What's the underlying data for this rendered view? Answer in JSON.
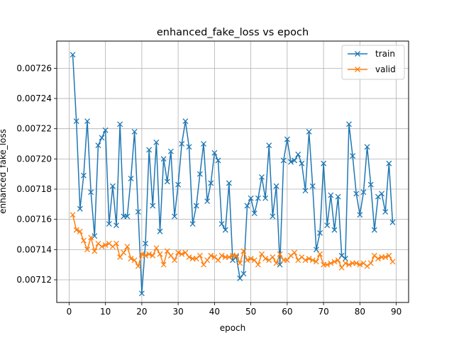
{
  "chart_data": {
    "type": "line",
    "title": "enhanced_fake_loss vs epoch",
    "xlabel": "epoch",
    "ylabel": "enhanced_fake_loss",
    "xlim": [
      -3.4,
      93.4
    ],
    "ylim": [
      0.007105,
      0.007278
    ],
    "xticks": [
      0,
      10,
      20,
      30,
      40,
      50,
      60,
      70,
      80,
      90
    ],
    "yticks": [
      0.00712,
      0.00714,
      0.00716,
      0.00718,
      0.0072,
      0.00722,
      0.00724,
      0.00726
    ],
    "ytick_labels": [
      "0.00712",
      "0.00714",
      "0.00716",
      "0.00718",
      "0.00720",
      "0.00722",
      "0.00724",
      "0.00726"
    ],
    "grid": true,
    "legend_position": "top-right",
    "marker": "x",
    "x": [
      1,
      2,
      3,
      4,
      5,
      6,
      7,
      8,
      9,
      10,
      11,
      12,
      13,
      14,
      15,
      16,
      17,
      18,
      19,
      20,
      21,
      22,
      23,
      24,
      25,
      26,
      27,
      28,
      29,
      30,
      31,
      32,
      33,
      34,
      35,
      36,
      37,
      38,
      39,
      40,
      41,
      42,
      43,
      44,
      45,
      46,
      47,
      48,
      49,
      50,
      51,
      52,
      53,
      54,
      55,
      56,
      57,
      58,
      59,
      60,
      61,
      62,
      63,
      64,
      65,
      66,
      67,
      68,
      69,
      70,
      71,
      72,
      73,
      74,
      75,
      76,
      77,
      78,
      79,
      80,
      81,
      82,
      83,
      84,
      85,
      86,
      87,
      88,
      89
    ],
    "series": [
      {
        "name": "train",
        "color": "#1f77b4",
        "values": [
          0.007269,
          0.007225,
          0.007167,
          0.007189,
          0.007225,
          0.007178,
          0.007149,
          0.007209,
          0.007214,
          0.007219,
          0.007157,
          0.007182,
          0.007156,
          0.007223,
          0.007162,
          0.007162,
          0.007187,
          0.007218,
          0.007165,
          0.007111,
          0.007144,
          0.007206,
          0.007169,
          0.007211,
          0.007152,
          0.0072,
          0.007185,
          0.007205,
          0.007162,
          0.007183,
          0.00721,
          0.007225,
          0.007208,
          0.007157,
          0.007169,
          0.00719,
          0.00721,
          0.007172,
          0.007184,
          0.007204,
          0.007199,
          0.007157,
          0.007153,
          0.007184,
          0.007133,
          0.007135,
          0.007121,
          0.007124,
          0.007169,
          0.007174,
          0.007164,
          0.007174,
          0.007188,
          0.007174,
          0.007209,
          0.007162,
          0.007182,
          0.00713,
          0.007199,
          0.007213,
          0.007198,
          0.007199,
          0.007203,
          0.007197,
          0.007179,
          0.007218,
          0.007182,
          0.00714,
          0.007151,
          0.007197,
          0.007156,
          0.007176,
          0.007153,
          0.007175,
          0.007136,
          0.007134,
          0.007223,
          0.007202,
          0.007177,
          0.007163,
          0.007178,
          0.007208,
          0.007183,
          0.007153,
          0.007175,
          0.007177,
          0.007165,
          0.007197,
          0.007158
        ]
      },
      {
        "name": "valid",
        "color": "#ff7f0e",
        "values": [
          0.007163,
          0.007153,
          0.007152,
          0.007146,
          0.00714,
          0.007148,
          0.007139,
          0.007144,
          0.007142,
          0.007143,
          0.007144,
          0.007142,
          0.007144,
          0.007135,
          0.007138,
          0.007142,
          0.007134,
          0.007133,
          0.007129,
          0.007137,
          0.007136,
          0.007137,
          0.007136,
          0.007141,
          0.007137,
          0.00713,
          0.007139,
          0.007136,
          0.007133,
          0.007138,
          0.007137,
          0.007138,
          0.007135,
          0.007134,
          0.007134,
          0.007136,
          0.00713,
          0.007133,
          0.007136,
          0.007135,
          0.007133,
          0.007136,
          0.007135,
          0.007135,
          0.007136,
          0.007136,
          0.007131,
          0.007139,
          0.007133,
          0.007134,
          0.007133,
          0.00713,
          0.007137,
          0.007134,
          0.007133,
          0.007135,
          0.007131,
          0.007137,
          0.007133,
          0.007133,
          0.007136,
          0.007138,
          0.007133,
          0.007135,
          0.007133,
          0.007134,
          0.007133,
          0.007132,
          0.007137,
          0.00713,
          0.00713,
          0.007131,
          0.007132,
          0.007133,
          0.007128,
          0.007131,
          0.00713,
          0.007131,
          0.007131,
          0.00713,
          0.007131,
          0.007129,
          0.007131,
          0.007136,
          0.007134,
          0.007135,
          0.007135,
          0.007136,
          0.007132
        ]
      }
    ]
  }
}
